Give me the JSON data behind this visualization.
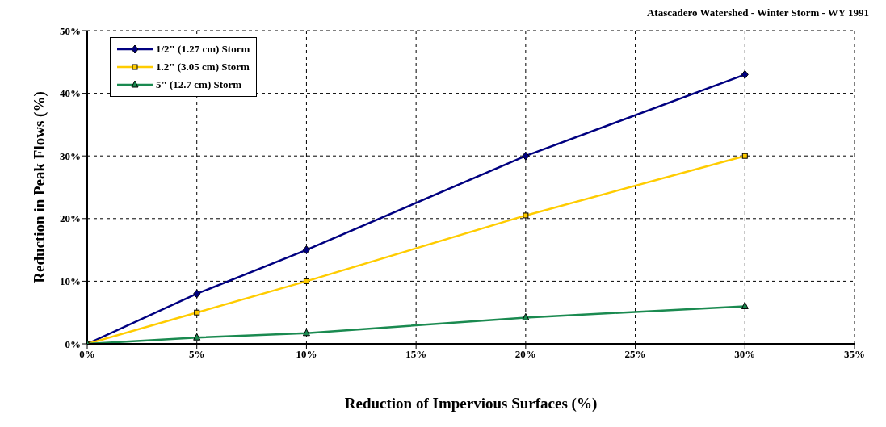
{
  "chart_data": {
    "type": "line",
    "title": "Atascadero Watershed - Winter Storm - WY 1991",
    "xlabel": "Reduction of Impervious Surfaces (%)",
    "ylabel": "Reduction in Peak Flows (%)",
    "x": [
      0,
      5,
      10,
      20,
      30
    ],
    "series": [
      {
        "name": "1/2\" (1.27 cm) Storm",
        "color": "#000080",
        "marker": "diamond",
        "values": [
          0,
          8,
          15,
          30,
          43
        ]
      },
      {
        "name": "1.2\" (3.05 cm) Storm",
        "color": "#ffcc00",
        "marker": "square",
        "values": [
          0,
          5,
          10,
          20.5,
          30
        ]
      },
      {
        "name": "5\" (12.7 cm) Storm",
        "color": "#1a8a50",
        "marker": "triangle",
        "values": [
          0,
          1,
          1.7,
          4.2,
          6
        ]
      }
    ],
    "xlim": [
      0,
      35
    ],
    "xticks": [
      {
        "value": 0,
        "label": "0%"
      },
      {
        "value": 5,
        "label": "5%"
      },
      {
        "value": 10,
        "label": "10%"
      },
      {
        "value": 15,
        "label": "15%"
      },
      {
        "value": 20,
        "label": "20%"
      },
      {
        "value": 25,
        "label": "25%"
      },
      {
        "value": 30,
        "label": "30%"
      },
      {
        "value": 35,
        "label": "35%"
      }
    ],
    "ylim": [
      0,
      50
    ],
    "yticks": [
      {
        "value": 0,
        "label": "0%"
      },
      {
        "value": 10,
        "label": "10%"
      },
      {
        "value": 20,
        "label": "20%"
      },
      {
        "value": 30,
        "label": "30%"
      },
      {
        "value": 40,
        "label": "40%"
      },
      {
        "value": 50,
        "label": "50%"
      }
    ],
    "grid": true,
    "legend": "top left",
    "line_style": "solid"
  }
}
